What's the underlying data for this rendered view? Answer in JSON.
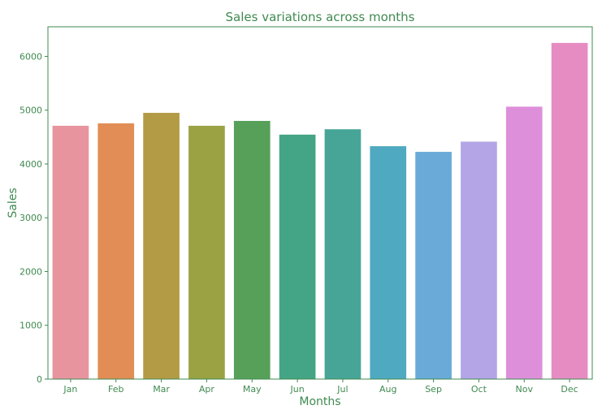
{
  "chart_data": {
    "type": "bar",
    "title": "Sales variations across months",
    "xlabel": "Months",
    "ylabel": "Sales",
    "categories": [
      "Jan",
      "Feb",
      "Mar",
      "Apr",
      "May",
      "Jun",
      "Jul",
      "Aug",
      "Sep",
      "Oct",
      "Nov",
      "Dec"
    ],
    "values": [
      4710,
      4755,
      4950,
      4710,
      4800,
      4545,
      4645,
      4330,
      4225,
      4415,
      5065,
      6250
    ],
    "ylim": [
      0,
      6550
    ],
    "yticks": [
      "0",
      "1000",
      "2000",
      "3000",
      "4000",
      "5000",
      "6000"
    ],
    "colors": [
      "#e8949f",
      "#e28d55",
      "#b39b45",
      "#9aa244",
      "#56a05a",
      "#44a486",
      "#46a597",
      "#4fa9c0",
      "#6aaad8",
      "#b4a5e7",
      "#de8fda",
      "#e68cc2"
    ],
    "text_color": "#3f8a50",
    "grid": false,
    "legend": "none"
  }
}
